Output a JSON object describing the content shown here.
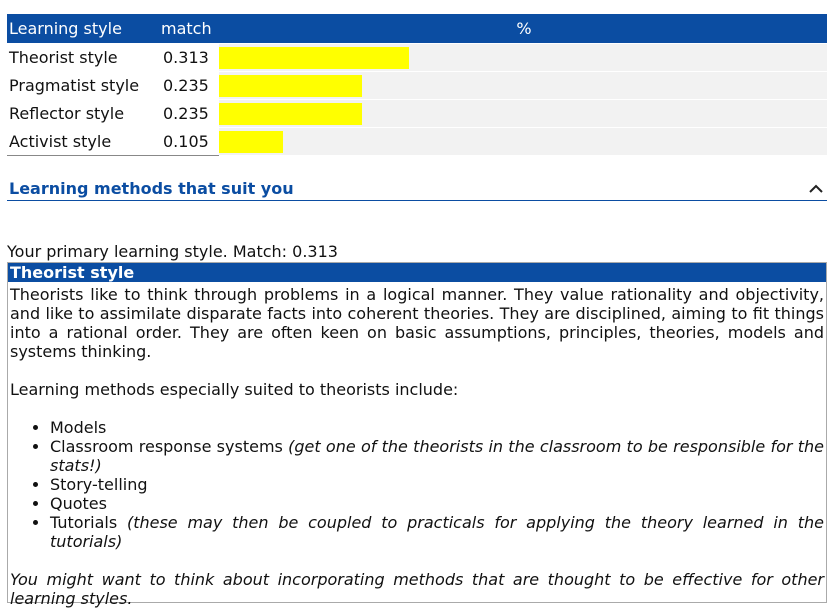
{
  "table": {
    "headers": {
      "style": "Learning style",
      "match": "match",
      "percent": "%"
    },
    "rows": [
      {
        "label": "Theorist style",
        "match": "0.313",
        "fraction": 0.313
      },
      {
        "label": "Pragmatist style",
        "match": "0.235",
        "fraction": 0.235
      },
      {
        "label": "Reflector style",
        "match": "0.235",
        "fraction": 0.235
      },
      {
        "label": "Activist style",
        "match": "0.105",
        "fraction": 0.105
      }
    ],
    "bar_color": "#ffff00"
  },
  "section": {
    "title": "Learning methods that suit you",
    "toggle_icon": "chevron-up-icon"
  },
  "primary": {
    "line": "Your primary learning style. Match: 0.313",
    "style_title": "Theorist style",
    "description": "Theorists like to think through problems in a logical manner. They value rationality and objectivity, and like to assimilate disparate facts into coherent theories. They are disciplined, aiming to fit things into a rational order. They are often keen on basic assumptions, principles, theories, models and systems thinking.",
    "methods_intro": "Learning methods especially suited to theorists include:",
    "methods": [
      {
        "text": "Models",
        "note": ""
      },
      {
        "text": "Classroom response systems ",
        "note": "(get one of the theorists in the classroom to be responsible for the stats!)"
      },
      {
        "text": "Story-telling",
        "note": ""
      },
      {
        "text": "Quotes",
        "note": ""
      },
      {
        "text": "Tutorials ",
        "note": "(these may then be coupled to practicals for applying the theory learned in the tutorials)"
      }
    ],
    "footer": "You might want to think about incorporating methods that are thought to be effective for other learning styles."
  },
  "colors": {
    "header_blue": "#0b4da2",
    "bar_track": "#f2f2f2"
  }
}
